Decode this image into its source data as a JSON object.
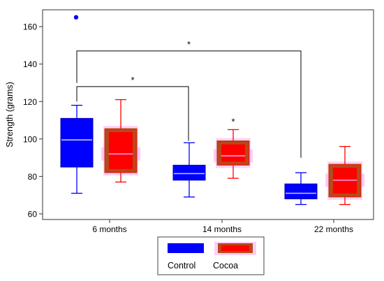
{
  "chart_data": {
    "type": "box",
    "ylabel": "Strength (grams)",
    "ylim": [
      57,
      169
    ],
    "yticks": [
      60,
      80,
      100,
      120,
      140,
      160
    ],
    "categories": [
      "6 months",
      "14 months",
      "22 months"
    ],
    "legend": {
      "placement": "bottom-center",
      "entries": [
        "Control",
        "Cocoa"
      ]
    },
    "series": [
      {
        "name": "Control",
        "color": "#0000ff",
        "median_color": "#c8c8ff",
        "boxes": [
          {
            "category": "6 months",
            "whisker_low": 71,
            "q1": 85,
            "median": 99.5,
            "q3": 111,
            "whisker_high": 118,
            "outliers": [
              165
            ]
          },
          {
            "category": "14 months",
            "whisker_low": 69,
            "q1": 78,
            "median": 81.5,
            "q3": 86,
            "whisker_high": 98,
            "outliers": []
          },
          {
            "category": "22 months",
            "whisker_low": 65,
            "q1": 68,
            "median": 71,
            "q3": 76,
            "whisker_high": 82,
            "outliers": []
          }
        ]
      },
      {
        "name": "Cocoa",
        "color": "#ff0000",
        "shade_color": "#ff9ef2",
        "band_color": "#b64a1a",
        "boxes": [
          {
            "category": "6 months",
            "whisker_low": 77,
            "q1": 82,
            "median": 92,
            "q3": 105.5,
            "whisker_high": 121,
            "outliers": []
          },
          {
            "category": "14 months",
            "whisker_low": 79,
            "q1": 86,
            "median": 91,
            "q3": 99,
            "whisker_high": 105,
            "outliers": []
          },
          {
            "category": "22 months",
            "whisker_low": 65,
            "q1": 69,
            "median": 78,
            "q3": 86.5,
            "whisker_high": 96,
            "outliers": []
          }
        ]
      }
    ],
    "annotations": [
      {
        "type": "bracket",
        "from": "6 months",
        "to": "14 months",
        "y": 128,
        "label": "*"
      },
      {
        "type": "bracket",
        "from": "6 months",
        "to": "22 months",
        "y": 147,
        "label": "*"
      },
      {
        "type": "star",
        "category": "14 months",
        "series": "Cocoa",
        "y": 109,
        "label": "*"
      }
    ],
    "grid": false
  }
}
